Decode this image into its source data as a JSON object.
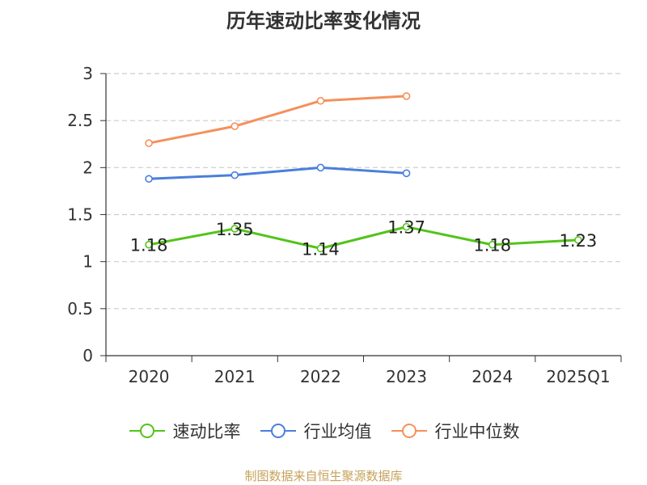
{
  "chart_data": {
    "type": "line",
    "title": "历年速动比率变化情况",
    "xlabel": "",
    "ylabel": "",
    "categories": [
      "2020",
      "2021",
      "2022",
      "2023",
      "2024",
      "2025Q1"
    ],
    "ylim": [
      0,
      3
    ],
    "yticks": [
      0,
      0.5,
      1,
      1.5,
      2,
      2.5,
      3
    ],
    "ytick_labels": [
      "0",
      "0.5",
      "1",
      "1.5",
      "2",
      "2.5",
      "3"
    ],
    "grid": true,
    "legend_position": "bottom",
    "series": [
      {
        "name": "速动比率",
        "color": "#52c41a",
        "values": [
          1.18,
          1.35,
          1.14,
          1.37,
          1.18,
          1.23
        ],
        "labels": [
          "1.18",
          "1.35",
          "1.14",
          "1.37",
          "1.18",
          "1.23"
        ],
        "show_labels": true
      },
      {
        "name": "行业均值",
        "color": "#4a7fdb",
        "values": [
          1.88,
          1.92,
          2.0,
          1.94,
          null,
          null
        ],
        "show_labels": false
      },
      {
        "name": "行业中位数",
        "color": "#f5905a",
        "values": [
          2.26,
          2.44,
          2.71,
          2.76,
          null,
          null
        ],
        "show_labels": false
      }
    ]
  },
  "footer": {
    "source": "制图数据来自恒生聚源数据库"
  }
}
